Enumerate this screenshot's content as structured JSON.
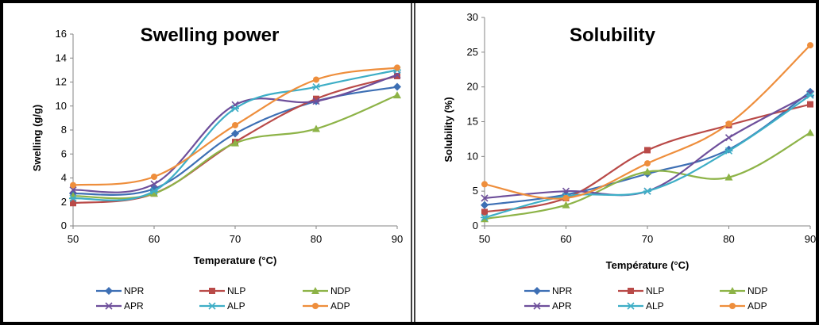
{
  "chart_data": [
    {
      "type": "line",
      "title": "Swelling power",
      "xlabel": "Temperature (°C)",
      "ylabel": "Swelling (g/g)",
      "x": [
        50,
        60,
        70,
        80,
        90
      ],
      "xlim": [
        50,
        90
      ],
      "ylim": [
        0,
        16
      ],
      "xticks": [
        "50",
        "60",
        "70",
        "80",
        "90"
      ],
      "yticks": [
        "0",
        "2",
        "4",
        "6",
        "8",
        "10",
        "12",
        "14",
        "16"
      ],
      "grid": false,
      "legend_position": "bottom",
      "series": [
        {
          "name": "NPR",
          "color": "#3d6fb4",
          "marker": "diamond",
          "values": [
            2.7,
            3.1,
            7.7,
            10.4,
            11.6
          ]
        },
        {
          "name": "NLP",
          "color": "#b94a48",
          "marker": "square",
          "values": [
            1.9,
            2.7,
            7.0,
            10.6,
            12.5
          ]
        },
        {
          "name": "NDP",
          "color": "#8db347",
          "marker": "triangle",
          "values": [
            2.5,
            2.7,
            6.9,
            8.1,
            10.9
          ]
        },
        {
          "name": "APR",
          "color": "#6e4f9b",
          "marker": "x",
          "values": [
            3.0,
            3.5,
            10.1,
            10.4,
            12.6
          ]
        },
        {
          "name": "ALP",
          "color": "#3eaec6",
          "marker": "star",
          "values": [
            2.3,
            2.9,
            9.8,
            11.6,
            13.0
          ]
        },
        {
          "name": "ADP",
          "color": "#ee8e3c",
          "marker": "circle",
          "values": [
            3.4,
            4.1,
            8.4,
            12.2,
            13.2
          ]
        }
      ]
    },
    {
      "type": "line",
      "title": "Solubility",
      "xlabel": "Température (°C)",
      "ylabel": "Solubility (%)",
      "x": [
        50,
        60,
        70,
        80,
        90
      ],
      "xlim": [
        50,
        90
      ],
      "ylim": [
        0,
        30
      ],
      "xticks": [
        "50",
        "60",
        "70",
        "80",
        "90"
      ],
      "yticks": [
        "0",
        "5",
        "10",
        "15",
        "20",
        "25",
        "30"
      ],
      "grid": false,
      "legend_position": "bottom",
      "series": [
        {
          "name": "NPR",
          "color": "#3d6fb4",
          "marker": "diamond",
          "values": [
            3.0,
            4.5,
            7.5,
            11.0,
            19.3
          ]
        },
        {
          "name": "NLP",
          "color": "#b94a48",
          "marker": "square",
          "values": [
            2.0,
            4.0,
            10.9,
            14.5,
            17.5
          ]
        },
        {
          "name": "NDP",
          "color": "#8db347",
          "marker": "triangle",
          "values": [
            1.0,
            3.0,
            7.8,
            7.0,
            13.4
          ]
        },
        {
          "name": "APR",
          "color": "#6e4f9b",
          "marker": "x",
          "values": [
            4.0,
            5.0,
            5.0,
            12.7,
            19.0
          ]
        },
        {
          "name": "ALP",
          "color": "#3eaec6",
          "marker": "star",
          "values": [
            1.2,
            4.3,
            5.0,
            10.8,
            18.8
          ]
        },
        {
          "name": "ADP",
          "color": "#ee8e3c",
          "marker": "circle",
          "values": [
            6.0,
            4.0,
            9.0,
            14.7,
            26.0
          ]
        }
      ]
    }
  ]
}
